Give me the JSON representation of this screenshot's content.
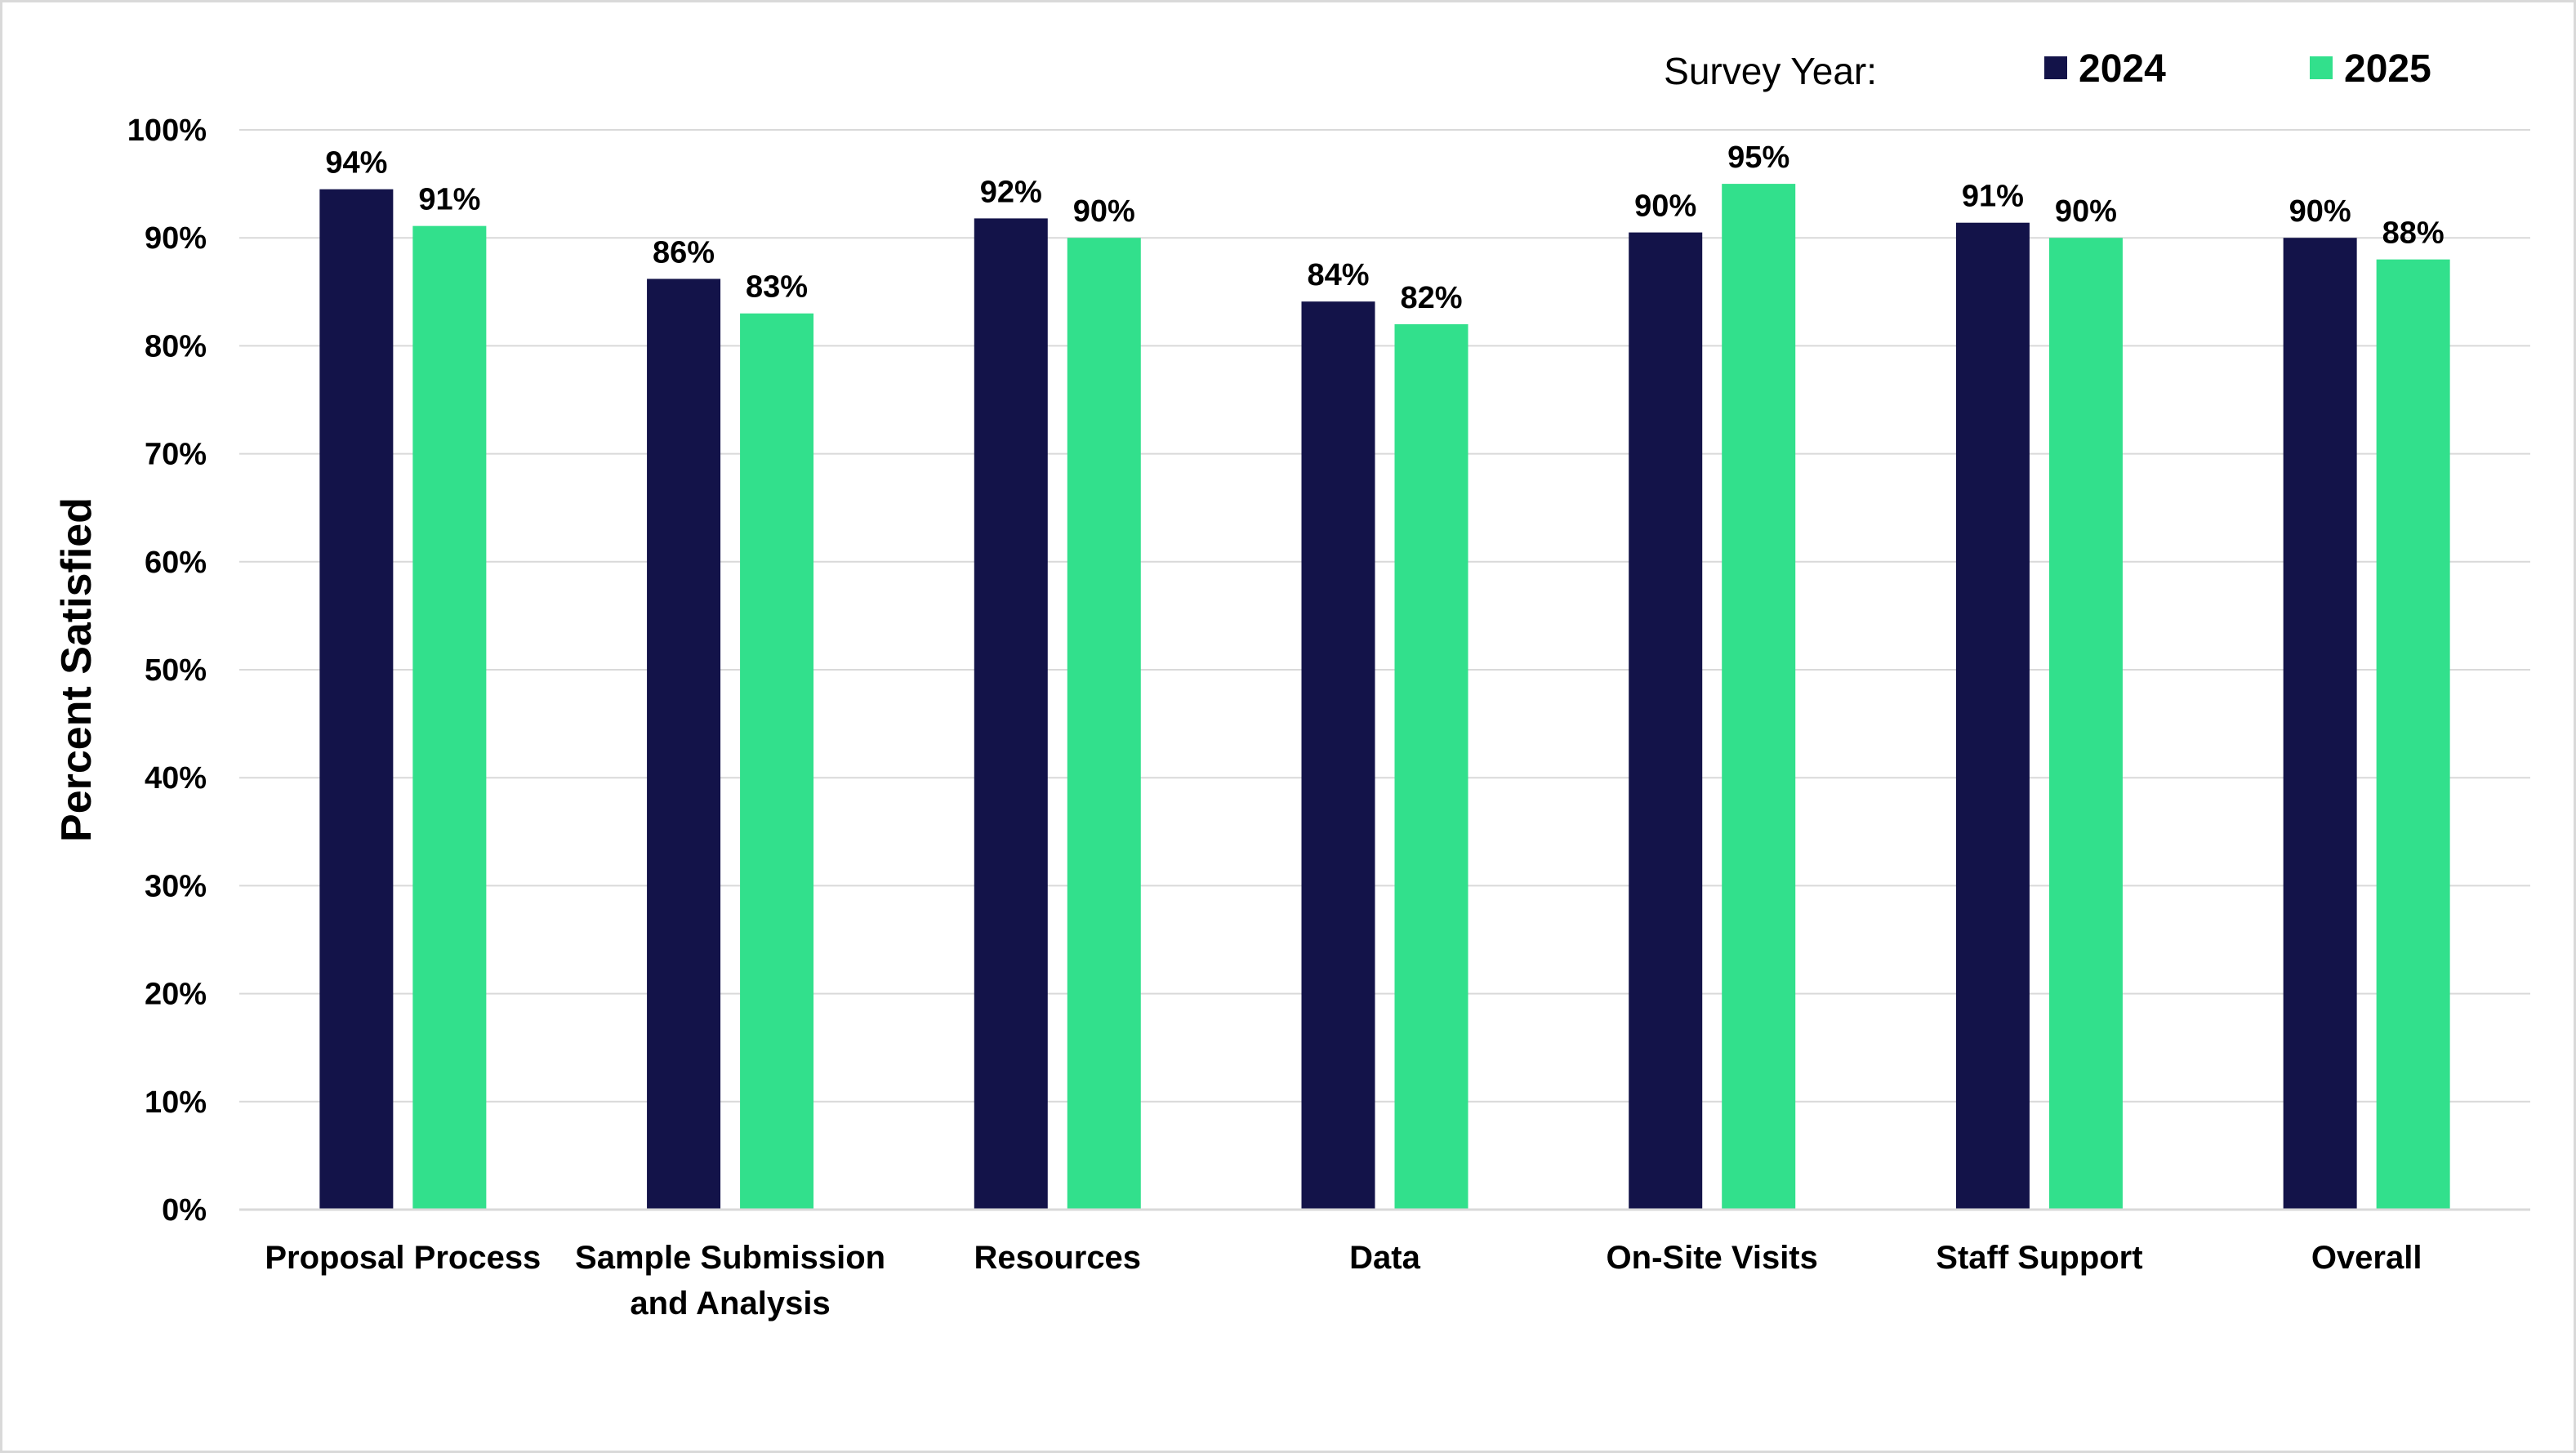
{
  "chart_data": {
    "type": "bar",
    "categories": [
      [
        "Proposal Process"
      ],
      [
        "Sample Submission",
        "and Analysis"
      ],
      [
        "Resources"
      ],
      [
        "Data"
      ],
      [
        "On-Site Visits"
      ],
      [
        "Staff Support"
      ],
      [
        "Overall"
      ]
    ],
    "series": [
      {
        "name": "2024",
        "color": "#131349",
        "values": [
          94.5,
          86.2,
          91.8,
          84.1,
          90.5,
          91.4,
          90.0
        ],
        "labels": [
          "94%",
          "86%",
          "92%",
          "84%",
          "90%",
          "91%",
          "90%"
        ]
      },
      {
        "name": "2025",
        "color": "#32e08c",
        "values": [
          91.1,
          83.0,
          90.0,
          82.0,
          95.0,
          90.0,
          88.0
        ],
        "labels": [
          "91%",
          "83%",
          "90%",
          "82%",
          "95%",
          "90%",
          "88%"
        ]
      }
    ],
    "ylabel": "Percent Satisfied",
    "xlabel": "",
    "ylim": [
      0,
      100
    ],
    "yticks": [
      0,
      10,
      20,
      30,
      40,
      50,
      60,
      70,
      80,
      90,
      100
    ],
    "ytick_labels": [
      "0%",
      "10%",
      "20%",
      "30%",
      "40%",
      "50%",
      "60%",
      "70%",
      "80%",
      "90%",
      "100%"
    ],
    "grid": true,
    "gridline_color": "#d9d9d9",
    "legend": {
      "title": "Survey Year:",
      "placement": "top-right"
    }
  }
}
